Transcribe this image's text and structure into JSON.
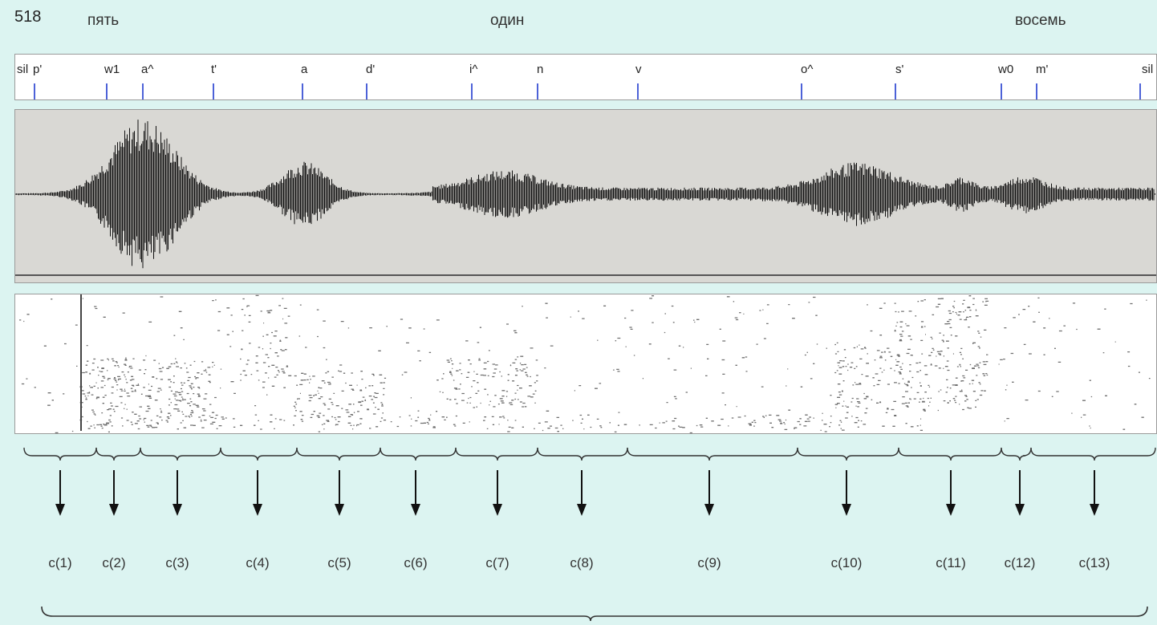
{
  "header": {
    "utterance_number": "518",
    "words": [
      "пять",
      "один",
      "восемь"
    ]
  },
  "phone_tier": {
    "labels": [
      "sil",
      "p'",
      "w1",
      "a^",
      "t'",
      "a",
      "d'",
      "i^",
      "n",
      "v",
      "o^",
      "s'",
      "w0",
      "m'",
      "sil"
    ]
  },
  "frames": {
    "labels": [
      "c(1)",
      "c(2)",
      "c(3)",
      "c(4)",
      "c(5)",
      "c(6)",
      "c(7)",
      "c(8)",
      "c(9)",
      "c(10)",
      "c(11)",
      "c(12)",
      "c(13)"
    ]
  },
  "colors": {
    "background": "#dcf4f1",
    "tick": "#4d62d8",
    "waveform": "#111111",
    "panel_gray": "#d9d8d4"
  }
}
